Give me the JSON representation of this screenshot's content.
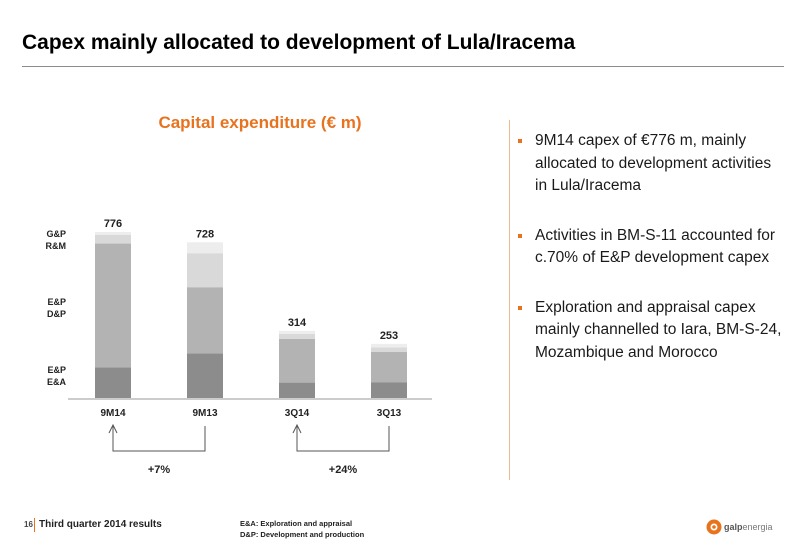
{
  "slide": {
    "title": "Capex mainly allocated to development of Lula/Iracema"
  },
  "chart_data": {
    "type": "bar",
    "stacked": true,
    "title": "Capital expenditure (€ m)",
    "categories": [
      "9M14",
      "9M13",
      "3Q14",
      "3Q13"
    ],
    "totals": [
      776,
      728,
      314,
      253
    ],
    "series": [
      {
        "name": "E&P E&A",
        "values": [
          143,
          209,
          72,
          74
        ],
        "color": "#8c8c8c"
      },
      {
        "name": "E&P D&P",
        "values": [
          579,
          309,
          204,
          141
        ],
        "color": "#b3b3b3"
      },
      {
        "name": "R&M",
        "values": [
          40,
          159,
          24,
          22
        ],
        "color": "#d9d9d9"
      },
      {
        "name": "G&P",
        "values": [
          14,
          51,
          14,
          16
        ],
        "color": "#ededed"
      }
    ],
    "series_labels": [
      {
        "lines": [
          "G&P",
          "R&M"
        ]
      },
      {
        "lines": [
          "E&P",
          "D&P"
        ]
      },
      {
        "lines": [
          "E&P",
          "E&A"
        ]
      }
    ],
    "ylim": [
      0,
      776
    ],
    "grid": false,
    "comparisons": [
      {
        "from": 0,
        "to": 1,
        "label": "+7%"
      },
      {
        "from": 2,
        "to": 3,
        "label": "+24%"
      }
    ]
  },
  "bullets": [
    "9M14 capex of €776 m, mainly allocated to development activities in Lula/Iracema",
    "Activities in BM-S-11 accounted for c.70% of E&P development capex",
    "Exploration and appraisal capex mainly channelled to Iara, BM-S-24, Mozambique and Morocco"
  ],
  "footer": {
    "page_number": "16",
    "text": "Third quarter 2014 results",
    "notes": [
      "E&A: Exploration and appraisal",
      "D&P: Development and production"
    ]
  },
  "logo": {
    "name": "galp",
    "suffix": "energia",
    "color": "#e8731f"
  }
}
